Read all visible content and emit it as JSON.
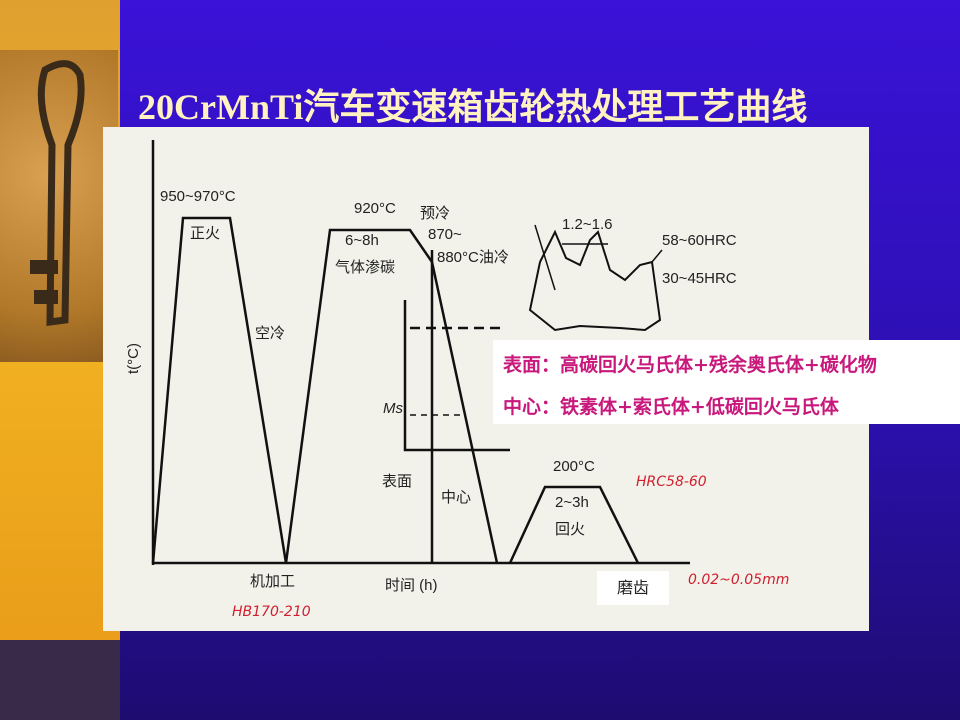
{
  "title": "20CrMnTi汽车变速箱齿轮热处理工艺曲线",
  "diagram": {
    "y_axis_label": "t(°C)",
    "x_axis_label": "时间 (h)",
    "normalizing_temp": "950~970°C",
    "normalizing": "正火",
    "air_cooling": "空冷",
    "carburizing_temp": "920°C",
    "carburizing_time": "6~8h",
    "carburizing": "气体渗碳",
    "precool": "预冷",
    "quench_temp_1": "870~",
    "quench_temp_2": "880°C油冷",
    "ms": "Ms",
    "surface": "表面",
    "center": "中心",
    "tempering_temp": "200°C",
    "tempering_time": "2~3h",
    "tempering": "回火",
    "machining": "机加工",
    "grinding": "磨齿",
    "case_depth": "1.2~1.6",
    "surface_hardness": "58~60HRC",
    "core_hardness": "30~45HRC",
    "note_hrc": "HRC58-60",
    "note_hb": "HB170-210",
    "note_grind": "0.02~0.05mm"
  },
  "overlay": {
    "surface_structure": "表面：高碳回火马氏体+残余奥氏体+碳化物",
    "core_structure": "中心：铁素体+索氏体+低碳回火马氏体"
  }
}
